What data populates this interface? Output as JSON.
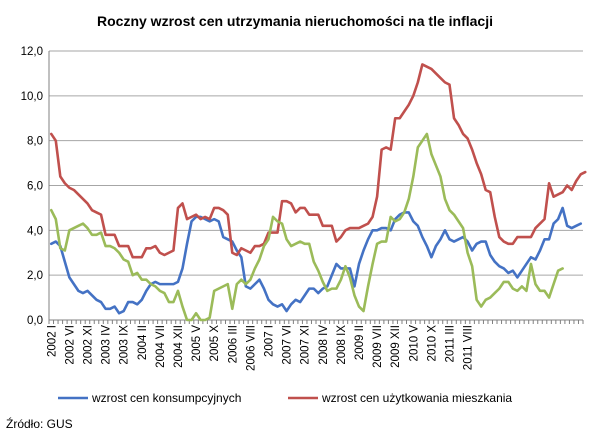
{
  "chart_data": {
    "type": "line",
    "title": "Roczny wzrost cen utrzymania nieruchomości na tle inflacji",
    "source": "Źródło: GUS",
    "ylim": [
      0,
      12
    ],
    "yticks": [
      "0,0",
      "2,0",
      "4,0",
      "6,0",
      "8,0",
      "10,0",
      "12,0"
    ],
    "grid": true,
    "legend_position": "bottom",
    "start": "2002-01",
    "xtick_every": 4,
    "xticks": [
      "2002 I",
      "2002 VI",
      "2002 XI",
      "2003 IV",
      "2003 IX",
      "2004 II",
      "2004 VII",
      "2004 XII",
      "2005 V",
      "2005 X",
      "2006 III",
      "2006 VIII",
      "2007 I",
      "2007 VI",
      "2007 XI",
      "2008 IV",
      "2008 IX",
      "2009 II",
      "2009 VII",
      "2009 XII",
      "2010 V",
      "2010 X",
      "2011 III",
      "2011 VIII"
    ],
    "series": [
      {
        "name": "wzrost cen konsumpcyjnych",
        "color": "#4472C4",
        "values": [
          3.4,
          3.5,
          3.3,
          2.6,
          1.9,
          1.6,
          1.3,
          1.2,
          1.3,
          1.1,
          0.9,
          0.8,
          0.5,
          0.5,
          0.6,
          0.3,
          0.4,
          0.8,
          0.8,
          0.7,
          0.9,
          1.3,
          1.6,
          1.7,
          1.6,
          1.6,
          1.6,
          1.6,
          1.7,
          2.3,
          3.4,
          4.4,
          4.6,
          4.6,
          4.5,
          4.4,
          4.5,
          4.4,
          3.7,
          3.6,
          3.5,
          3.1,
          2.8,
          1.5,
          1.4,
          1.6,
          1.8,
          1.4,
          0.9,
          0.7,
          0.6,
          0.7,
          0.4,
          0.7,
          0.9,
          0.8,
          1.1,
          1.4,
          1.4,
          1.2,
          1.4,
          1.5,
          2.0,
          2.5,
          2.3,
          2.3,
          2.3,
          1.5,
          2.5,
          3.1,
          3.6,
          4.0,
          4.0,
          4.1,
          4.1,
          4.0,
          4.5,
          4.7,
          4.8,
          4.8,
          4.4,
          4.2,
          3.7,
          3.3,
          2.8,
          3.3,
          3.6,
          4.0,
          3.6,
          3.5,
          3.6,
          3.7,
          3.5,
          3.1,
          3.4,
          3.5,
          3.5,
          2.9,
          2.6,
          2.4,
          2.3,
          2.1,
          2.2,
          1.9,
          2.2,
          2.5,
          2.8,
          2.7,
          3.1,
          3.6,
          3.6,
          4.3,
          4.5,
          5.0,
          4.2,
          4.1,
          4.2,
          4.3
        ]
      },
      {
        "name": "wzrost cen użytkowania mieszkania",
        "color": "#C0504D",
        "values": [
          8.3,
          8.0,
          6.4,
          6.1,
          5.9,
          5.8,
          5.6,
          5.4,
          5.2,
          4.9,
          4.8,
          4.7,
          3.8,
          3.8,
          3.8,
          3.3,
          3.3,
          3.3,
          2.8,
          2.8,
          2.8,
          3.2,
          3.2,
          3.3,
          3.0,
          2.9,
          3.0,
          3.1,
          5.0,
          5.2,
          4.5,
          4.6,
          4.7,
          4.5,
          4.6,
          4.5,
          5.0,
          5.0,
          4.9,
          4.7,
          3.0,
          2.9,
          3.2,
          3.1,
          3.0,
          3.3,
          3.3,
          3.4,
          3.9,
          3.9,
          3.9,
          5.3,
          5.3,
          5.2,
          4.8,
          5.0,
          5.0,
          4.7,
          4.7,
          4.7,
          4.2,
          4.2,
          4.2,
          3.5,
          3.7,
          4.0,
          4.1,
          4.1,
          4.1,
          4.2,
          4.3,
          4.6,
          5.5,
          7.6,
          7.7,
          7.6,
          9.0,
          9.0,
          9.3,
          9.6,
          10.0,
          10.6,
          11.4,
          11.3,
          11.2,
          11.0,
          10.8,
          10.6,
          10.5,
          9.0,
          8.7,
          8.3,
          8.1,
          7.6,
          7.0,
          6.5,
          5.8,
          5.7,
          4.6,
          3.7,
          3.5,
          3.4,
          3.4,
          3.7,
          3.7,
          3.7,
          3.7,
          4.1,
          4.3,
          4.5,
          6.1,
          5.5,
          5.6,
          5.7,
          6.0,
          5.8,
          6.2,
          6.5,
          6.6
        ]
      },
      {
        "name": "",
        "color": "#9BBB59",
        "values": [
          4.9,
          4.5,
          3.2,
          3.1,
          4.0,
          4.1,
          4.2,
          4.3,
          4.1,
          3.8,
          3.8,
          3.9,
          3.3,
          3.3,
          3.2,
          3.0,
          2.7,
          2.6,
          2.0,
          2.1,
          1.8,
          1.8,
          1.6,
          1.5,
          1.3,
          1.2,
          0.8,
          0.8,
          1.3,
          0.6,
          0.0,
          0.0,
          0.3,
          0.0,
          0.0,
          0.1,
          1.3,
          1.4,
          1.5,
          1.6,
          0.5,
          1.6,
          1.8,
          1.6,
          1.8,
          2.3,
          2.7,
          3.3,
          3.6,
          4.6,
          4.4,
          4.3,
          3.6,
          3.3,
          3.4,
          3.5,
          3.4,
          3.4,
          2.6,
          2.2,
          1.7,
          1.3,
          1.4,
          1.4,
          1.8,
          2.4,
          1.9,
          1.1,
          0.6,
          0.4,
          1.5,
          2.5,
          3.4,
          3.5,
          3.5,
          4.6,
          4.4,
          4.5,
          4.8,
          5.4,
          6.4,
          7.7,
          8.0,
          8.3,
          7.4,
          6.9,
          6.4,
          5.4,
          4.9,
          4.7,
          4.4,
          4.1,
          3.0,
          2.4,
          0.9,
          0.6,
          0.9,
          1.0,
          1.2,
          1.4,
          1.7,
          1.7,
          1.4,
          1.3,
          1.5,
          1.3,
          2.5,
          1.6,
          1.3,
          1.3,
          1.0,
          1.6,
          2.2,
          2.3
        ]
      }
    ]
  }
}
